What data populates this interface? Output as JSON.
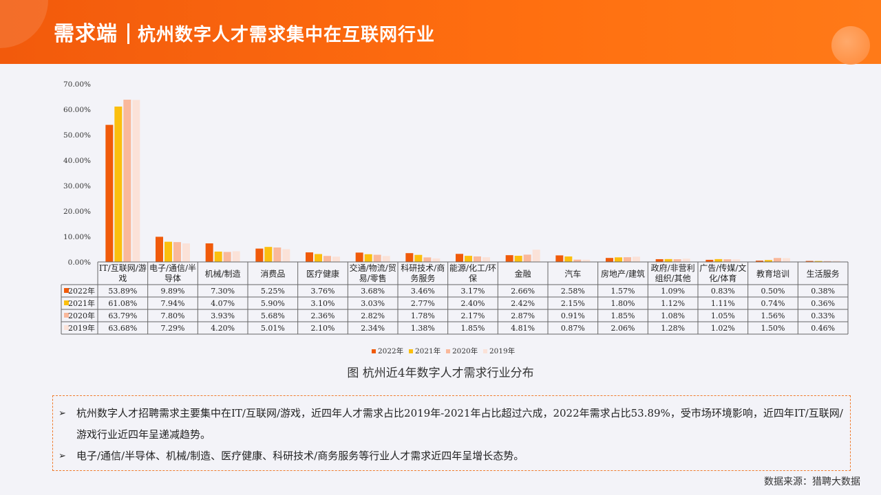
{
  "header": {
    "title_main": "需求端",
    "title_sub": "杭州数字人才需求集中在互联网行业"
  },
  "chart_data": {
    "type": "bar",
    "categories": [
      "IT/互联网/游戏",
      "电子/通信/半导体",
      "机械/制造",
      "消费品",
      "医疗健康",
      "交通/物流/贸易/零售",
      "科研技术/商务服务",
      "能源/化工/环保",
      "金融",
      "汽车",
      "房地产/建筑",
      "政府/非营利组织/其他",
      "广告/传媒/文化/体育",
      "教育培训",
      "生活服务"
    ],
    "category_lines": [
      [
        "IT/互联网/游",
        "戏"
      ],
      [
        "电子/通信/半",
        "导体"
      ],
      [
        "机械/制造"
      ],
      [
        "消费品"
      ],
      [
        "医疗健康"
      ],
      [
        "交通/物流/贸",
        "易/零售"
      ],
      [
        "科研技术/商",
        "务服务"
      ],
      [
        "能源/化工/环",
        "保"
      ],
      [
        "金融"
      ],
      [
        "汽车"
      ],
      [
        "房地产/建筑"
      ],
      [
        "政府/非营利",
        "组织/其他"
      ],
      [
        "广告/传媒/文",
        "化/体育"
      ],
      [
        "教育培训"
      ],
      [
        "生活服务"
      ]
    ],
    "series": [
      {
        "name": "2022年",
        "color": "#f05a0a",
        "values": [
          53.89,
          9.89,
          7.3,
          5.25,
          3.76,
          3.68,
          3.46,
          3.17,
          2.66,
          2.58,
          1.57,
          1.09,
          0.83,
          0.5,
          0.38
        ],
        "labels": [
          "53.89%",
          "9.89%",
          "7.30%",
          "5.25%",
          "3.76%",
          "3.68%",
          "3.46%",
          "3.17%",
          "2.66%",
          "2.58%",
          "1.57%",
          "1.09%",
          "0.83%",
          "0.50%",
          "0.38%"
        ]
      },
      {
        "name": "2021年",
        "color": "#fbbf0e",
        "values": [
          61.08,
          7.94,
          4.07,
          5.9,
          3.1,
          3.03,
          2.77,
          2.4,
          2.42,
          2.15,
          1.8,
          1.12,
          1.11,
          0.74,
          0.36
        ],
        "labels": [
          "61.08%",
          "7.94%",
          "4.07%",
          "5.90%",
          "3.10%",
          "3.03%",
          "2.77%",
          "2.40%",
          "2.42%",
          "2.15%",
          "1.80%",
          "1.12%",
          "1.11%",
          "0.74%",
          "0.36%"
        ]
      },
      {
        "name": "2020年",
        "color": "#f9b89b",
        "values": [
          63.79,
          7.8,
          3.93,
          5.68,
          2.36,
          2.82,
          1.78,
          2.17,
          2.87,
          0.91,
          1.85,
          1.08,
          1.05,
          1.56,
          0.33
        ],
        "labels": [
          "63.79%",
          "7.80%",
          "3.93%",
          "5.68%",
          "2.36%",
          "2.82%",
          "1.78%",
          "2.17%",
          "2.87%",
          "0.91%",
          "1.85%",
          "1.08%",
          "1.05%",
          "1.56%",
          "0.33%"
        ]
      },
      {
        "name": "2019年",
        "color": "#fbe2d8",
        "values": [
          63.68,
          7.29,
          4.2,
          5.01,
          2.1,
          2.34,
          1.38,
          1.85,
          4.81,
          0.87,
          2.06,
          1.28,
          1.02,
          1.5,
          0.46
        ],
        "labels": [
          "63.68%",
          "7.29%",
          "4.20%",
          "5.01%",
          "2.10%",
          "2.34%",
          "1.38%",
          "1.85%",
          "4.81%",
          "0.87%",
          "2.06%",
          "1.28%",
          "1.02%",
          "1.50%",
          "0.46%"
        ]
      }
    ],
    "yticks": [
      "0.00%",
      "10.00%",
      "20.00%",
      "30.00%",
      "40.00%",
      "50.00%",
      "60.00%",
      "70.00%"
    ],
    "ylim": [
      0,
      70
    ],
    "legend_position": "bottom-center",
    "title": ""
  },
  "caption": "图 杭州近4年数字人才需求行业分布",
  "notes": [
    "杭州数字人才招聘需求主要集中在IT/互联网/游戏，近四年人才需求占比2019年-2021年占比超过六成，2022年需求占比53.89%，受市场环境影响，近四年IT/互联网/游戏行业近四年呈递减趋势。",
    "电子/通信/半导体、机械/制造、医疗健康、科研技术/商务服务等行业人才需求近四年呈增长态势。"
  ],
  "note_arrow": "➢",
  "source": "数据来源：猎聘大数据"
}
